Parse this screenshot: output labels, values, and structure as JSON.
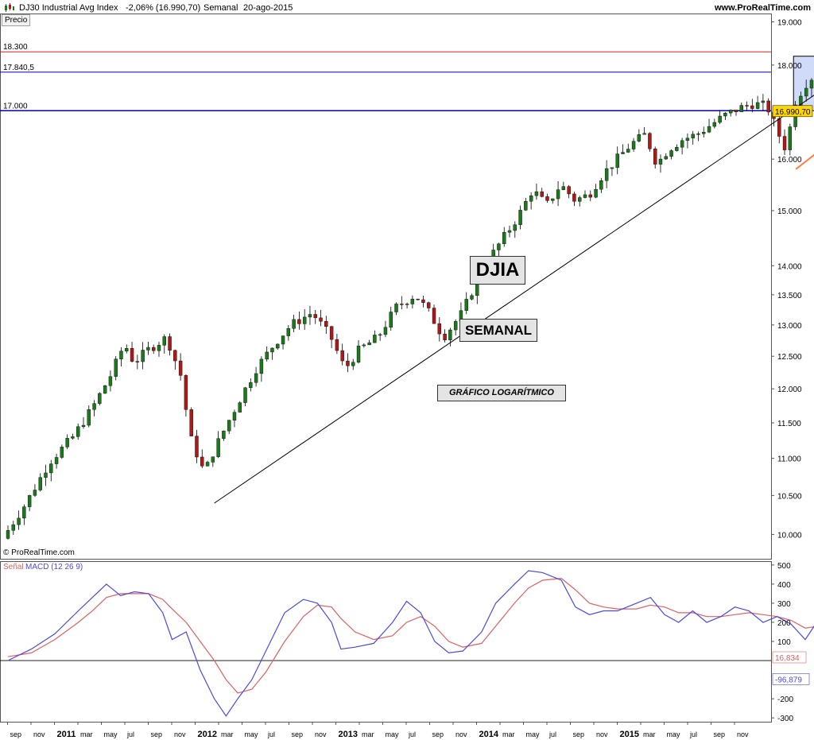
{
  "header": {
    "instrument": "DJ30 Industrial Avg Index",
    "change": "-2,06% (16.990,70)",
    "period": "Semanal",
    "date": "20-ago-2015",
    "site": "www.ProRealTime.com",
    "precio_button": "Precio"
  },
  "copyright": "© ProRealTime.com",
  "annotations": {
    "djia": "DJIA",
    "semanal": "SEMANAL",
    "log": "GRÁFICO LOGARÍTMICO"
  },
  "colors": {
    "bull": "#1a7a1a",
    "bear": "#b01818",
    "macd": "#4a4ae8",
    "signal": "#e06060",
    "resistance": "#e02020",
    "support": "#0000c0",
    "trendline": "#000000",
    "channel": "#ff7f3f",
    "box": "#c8d4f8",
    "price_label_bg": "#ffd700"
  },
  "chart_data": [
    {
      "type": "candlestick",
      "scale": "log",
      "ylim": [
        9700,
        19200
      ],
      "yticks": [
        "19.000",
        "18.000",
        "16.000",
        "15.000",
        "14.000",
        "13.500",
        "13.000",
        "12.500",
        "12.000",
        "11.500",
        "11.000",
        "10.500",
        "10.000"
      ],
      "ytick_values": [
        19000,
        18000,
        16000,
        15000,
        14000,
        13500,
        13000,
        12500,
        12000,
        11500,
        11000,
        10500,
        10000
      ],
      "x_ticks": [
        {
          "label": "sep",
          "bold": false
        },
        {
          "label": "nov",
          "bold": false
        },
        {
          "label": "2011",
          "bold": true
        },
        {
          "label": "mar",
          "bold": false
        },
        {
          "label": "may",
          "bold": false
        },
        {
          "label": "jul",
          "bold": false
        },
        {
          "label": "sep",
          "bold": false
        },
        {
          "label": "nov",
          "bold": false
        },
        {
          "label": "2012",
          "bold": true
        },
        {
          "label": "mar",
          "bold": false
        },
        {
          "label": "may",
          "bold": false
        },
        {
          "label": "jul",
          "bold": false
        },
        {
          "label": "sep",
          "bold": false
        },
        {
          "label": "nov",
          "bold": false
        },
        {
          "label": "2013",
          "bold": true
        },
        {
          "label": "mar",
          "bold": false
        },
        {
          "label": "may",
          "bold": false
        },
        {
          "label": "jul",
          "bold": false
        },
        {
          "label": "sep",
          "bold": false
        },
        {
          "label": "nov",
          "bold": false
        },
        {
          "label": "2014",
          "bold": true
        },
        {
          "label": "mar",
          "bold": false
        },
        {
          "label": "may",
          "bold": false
        },
        {
          "label": "jul",
          "bold": false
        },
        {
          "label": "sep",
          "bold": false
        },
        {
          "label": "nov",
          "bold": false
        },
        {
          "label": "2015",
          "bold": true
        },
        {
          "label": "mar",
          "bold": false
        },
        {
          "label": "may",
          "bold": false
        },
        {
          "label": "jul",
          "bold": false
        },
        {
          "label": "sep",
          "bold": false
        },
        {
          "label": "nov",
          "bold": false
        }
      ],
      "path_points": [
        [
          0,
          9950
        ],
        [
          1,
          10400
        ],
        [
          2,
          10950
        ],
        [
          3,
          11300
        ],
        [
          3.8,
          11700
        ],
        [
          4.6,
          12200
        ],
        [
          5.2,
          12700
        ],
        [
          5.6,
          12400
        ],
        [
          6.2,
          12600
        ],
        [
          7,
          12800
        ],
        [
          7.6,
          12200
        ],
        [
          8,
          11300
        ],
        [
          8.6,
          10800
        ],
        [
          9,
          11100
        ],
        [
          9.6,
          11500
        ],
        [
          10.2,
          11900
        ],
        [
          10.8,
          12300
        ],
        [
          11.6,
          12700
        ],
        [
          12.3,
          13000
        ],
        [
          13.2,
          13200
        ],
        [
          14,
          12800
        ],
        [
          14.6,
          12300
        ],
        [
          15.2,
          12600
        ],
        [
          16,
          12800
        ],
        [
          16.8,
          13300
        ],
        [
          17.6,
          13500
        ],
        [
          18.2,
          13200
        ],
        [
          18.8,
          12800
        ],
        [
          19.6,
          13200
        ],
        [
          20.4,
          13900
        ],
        [
          21.2,
          14400
        ],
        [
          22,
          14900
        ],
        [
          22.6,
          15400
        ],
        [
          23.2,
          15100
        ],
        [
          23.8,
          15500
        ],
        [
          24.4,
          15200
        ],
        [
          25,
          15300
        ],
        [
          25.6,
          15700
        ],
        [
          26.2,
          16000
        ],
        [
          26.8,
          16300
        ],
        [
          27.4,
          16500
        ],
        [
          27.9,
          15900
        ],
        [
          28.4,
          16200
        ],
        [
          29,
          16400
        ],
        [
          29.6,
          16500
        ],
        [
          30.2,
          16700
        ],
        [
          30.8,
          16900
        ],
        [
          31.4,
          17050
        ],
        [
          32,
          17150
        ],
        [
          32.6,
          17100
        ],
        [
          33.1,
          16500
        ],
        [
          33.4,
          16200
        ],
        [
          33.8,
          17200
        ],
        [
          34.4,
          17700
        ],
        [
          35,
          17800
        ],
        [
          35.6,
          17900
        ],
        [
          36.2,
          17600
        ],
        [
          36.8,
          17800
        ],
        [
          37.4,
          18100
        ],
        [
          38,
          17900
        ],
        [
          38.6,
          18000
        ],
        [
          39.2,
          18200
        ],
        [
          39.8,
          18100
        ],
        [
          40.4,
          17900
        ],
        [
          41,
          17700
        ],
        [
          41.6,
          17400
        ],
        [
          42.2,
          16990
        ]
      ],
      "levels": [
        {
          "value": 18300,
          "label": "18.300",
          "color": "resistance"
        },
        {
          "value": 17840.5,
          "label": "17.840,5",
          "color": "support"
        },
        {
          "value": 17000,
          "label": "17.000",
          "color": "support"
        }
      ],
      "last_price": {
        "value": 16990.7,
        "label": "16.990,70"
      },
      "trendline": {
        "from": [
          8.8,
          10400
        ],
        "to": [
          39.5,
          19200
        ]
      },
      "channel": [
        {
          "from": [
            33.6,
            15800
          ],
          "to": [
            40.5,
            18500
          ]
        },
        {
          "from": [
            35.5,
            18100
          ],
          "to": [
            38.6,
            18300
          ]
        }
      ],
      "range_box": {
        "x": [
          33.5,
          41.5
        ],
        "y": [
          17000,
          18200
        ]
      }
    },
    {
      "type": "line",
      "title": "MACD (12 26 9)",
      "series_names": [
        "Señal",
        "MACD (12 26 9)"
      ],
      "ylim": [
        -320,
        520
      ],
      "yticks": [
        "500",
        "400",
        "300",
        "200",
        "100",
        "-200",
        "-300"
      ],
      "ytick_values": [
        500,
        400,
        300,
        200,
        100,
        -200,
        -300
      ],
      "zero_line": 0,
      "macd_points": [
        [
          0,
          0
        ],
        [
          1,
          60
        ],
        [
          2,
          140
        ],
        [
          3,
          260
        ],
        [
          3.6,
          330
        ],
        [
          4.2,
          400
        ],
        [
          4.8,
          340
        ],
        [
          5.4,
          360
        ],
        [
          6,
          350
        ],
        [
          6.6,
          250
        ],
        [
          7,
          110
        ],
        [
          7.6,
          150
        ],
        [
          8.2,
          -50
        ],
        [
          8.8,
          -200
        ],
        [
          9.3,
          -290
        ],
        [
          9.8,
          -200
        ],
        [
          10.4,
          -100
        ],
        [
          11,
          50
        ],
        [
          11.8,
          250
        ],
        [
          12.6,
          320
        ],
        [
          13.2,
          300
        ],
        [
          13.8,
          200
        ],
        [
          14.2,
          60
        ],
        [
          14.8,
          70
        ],
        [
          15.6,
          90
        ],
        [
          16.4,
          200
        ],
        [
          17,
          310
        ],
        [
          17.6,
          250
        ],
        [
          18.2,
          100
        ],
        [
          18.8,
          40
        ],
        [
          19.4,
          50
        ],
        [
          20.2,
          150
        ],
        [
          20.8,
          300
        ],
        [
          21.6,
          400
        ],
        [
          22.2,
          470
        ],
        [
          22.8,
          460
        ],
        [
          23.6,
          420
        ],
        [
          24.2,
          280
        ],
        [
          24.8,
          240
        ],
        [
          25.4,
          260
        ],
        [
          26,
          260
        ],
        [
          26.8,
          300
        ],
        [
          27.4,
          330
        ],
        [
          28,
          240
        ],
        [
          28.6,
          200
        ],
        [
          29.2,
          260
        ],
        [
          29.8,
          200
        ],
        [
          30.4,
          230
        ],
        [
          31,
          280
        ],
        [
          31.6,
          260
        ],
        [
          32.2,
          200
        ],
        [
          32.8,
          230
        ],
        [
          33.4,
          190
        ],
        [
          34,
          110
        ],
        [
          34.6,
          220
        ],
        [
          35.2,
          310
        ],
        [
          35.8,
          270
        ],
        [
          36.4,
          260
        ],
        [
          37,
          230
        ],
        [
          37.6,
          240
        ],
        [
          38.2,
          200
        ],
        [
          38.8,
          200
        ],
        [
          39.4,
          200
        ],
        [
          40,
          190
        ],
        [
          40.6,
          140
        ],
        [
          41.2,
          80
        ],
        [
          41.7,
          0
        ],
        [
          42.2,
          -96.879
        ]
      ],
      "signal_points": [
        [
          0,
          20
        ],
        [
          1,
          40
        ],
        [
          2,
          110
        ],
        [
          3,
          200
        ],
        [
          3.6,
          260
        ],
        [
          4.2,
          330
        ],
        [
          4.8,
          350
        ],
        [
          5.4,
          350
        ],
        [
          6,
          350
        ],
        [
          6.6,
          320
        ],
        [
          7,
          270
        ],
        [
          7.6,
          200
        ],
        [
          8.2,
          100
        ],
        [
          8.8,
          0
        ],
        [
          9.3,
          -100
        ],
        [
          9.8,
          -170
        ],
        [
          10.4,
          -150
        ],
        [
          11,
          -60
        ],
        [
          11.8,
          100
        ],
        [
          12.6,
          230
        ],
        [
          13.2,
          290
        ],
        [
          13.8,
          280
        ],
        [
          14.2,
          220
        ],
        [
          14.8,
          150
        ],
        [
          15.6,
          110
        ],
        [
          16.4,
          130
        ],
        [
          17,
          200
        ],
        [
          17.6,
          230
        ],
        [
          18.2,
          180
        ],
        [
          18.8,
          100
        ],
        [
          19.4,
          70
        ],
        [
          20.2,
          90
        ],
        [
          20.8,
          180
        ],
        [
          21.6,
          300
        ],
        [
          22.2,
          380
        ],
        [
          22.8,
          420
        ],
        [
          23.6,
          430
        ],
        [
          24.2,
          370
        ],
        [
          24.8,
          300
        ],
        [
          25.4,
          280
        ],
        [
          26,
          270
        ],
        [
          26.8,
          270
        ],
        [
          27.4,
          290
        ],
        [
          28,
          280
        ],
        [
          28.6,
          250
        ],
        [
          29.2,
          250
        ],
        [
          29.8,
          230
        ],
        [
          30.4,
          230
        ],
        [
          31,
          240
        ],
        [
          31.6,
          250
        ],
        [
          32.2,
          240
        ],
        [
          32.8,
          230
        ],
        [
          33.4,
          210
        ],
        [
          34,
          170
        ],
        [
          34.6,
          180
        ],
        [
          35.2,
          230
        ],
        [
          35.8,
          260
        ],
        [
          36.4,
          260
        ],
        [
          37,
          250
        ],
        [
          37.6,
          240
        ],
        [
          38.2,
          230
        ],
        [
          38.8,
          220
        ],
        [
          39.4,
          210
        ],
        [
          40,
          200
        ],
        [
          40.6,
          180
        ],
        [
          41.2,
          140
        ],
        [
          41.7,
          80
        ],
        [
          42.2,
          16.834
        ]
      ],
      "last_macd_label": "-96,879",
      "last_signal_label": "16,834"
    }
  ]
}
